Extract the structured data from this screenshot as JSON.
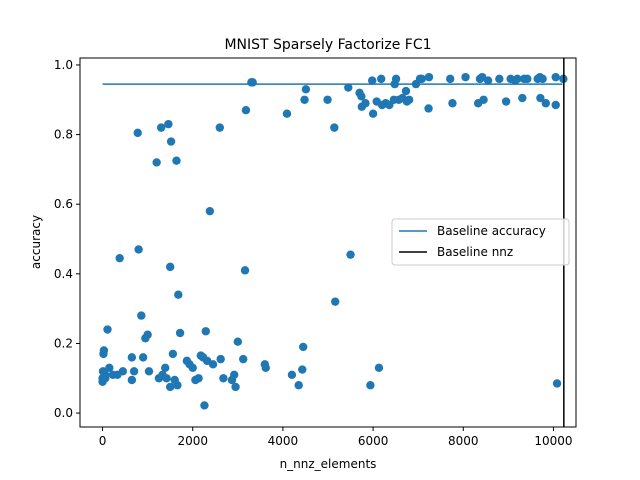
{
  "chart_data": {
    "type": "scatter",
    "title": "MNIST Sparsely Factorize FC1",
    "xlabel": "n_nnz_elements",
    "ylabel": "accuracy",
    "xlim": [
      -500,
      10500
    ],
    "ylim": [
      -0.04,
      1.02
    ],
    "xticks": [
      0,
      2000,
      4000,
      6000,
      8000,
      10000
    ],
    "xtick_labels": [
      "0",
      "2000",
      "4000",
      "6000",
      "8000",
      "10000"
    ],
    "yticks": [
      0.0,
      0.2,
      0.4,
      0.6,
      0.8,
      1.0
    ],
    "ytick_labels": [
      "0.0",
      "0.2",
      "0.4",
      "0.6",
      "0.8",
      "1.0"
    ],
    "grid": false,
    "legend": {
      "position": "center-right",
      "entries": [
        "Baseline accuracy",
        "Baseline nnz"
      ]
    },
    "colors": {
      "points": "#1f77b4",
      "baseline_accuracy": "#1f77b4",
      "baseline_nnz": "#000000"
    },
    "baseline_accuracy": {
      "name": "Baseline accuracy",
      "x": [
        0,
        10200
      ],
      "y": [
        0.945,
        0.945
      ]
    },
    "baseline_nnz": {
      "name": "Baseline nnz",
      "x": 10230
    },
    "points": [
      [
        30,
        0.18
      ],
      [
        20,
        0.17
      ],
      [
        60,
        0.11
      ],
      [
        0,
        0.1
      ],
      [
        0,
        0.09
      ],
      [
        10,
        0.12
      ],
      [
        60,
        0.1
      ],
      [
        110,
        0.24
      ],
      [
        150,
        0.13
      ],
      [
        230,
        0.11
      ],
      [
        330,
        0.11
      ],
      [
        380,
        0.445
      ],
      [
        450,
        0.12
      ],
      [
        650,
        0.16
      ],
      [
        650,
        0.095
      ],
      [
        700,
        0.12
      ],
      [
        780,
        0.805
      ],
      [
        800,
        0.47
      ],
      [
        860,
        0.28
      ],
      [
        900,
        0.16
      ],
      [
        950,
        0.215
      ],
      [
        1000,
        0.225
      ],
      [
        1030,
        0.12
      ],
      [
        1200,
        0.72
      ],
      [
        1250,
        0.1
      ],
      [
        1300,
        0.82
      ],
      [
        1330,
        0.11
      ],
      [
        1390,
        0.13
      ],
      [
        1420,
        0.1
      ],
      [
        1460,
        0.83
      ],
      [
        1500,
        0.075
      ],
      [
        1500,
        0.42
      ],
      [
        1520,
        0.78
      ],
      [
        1560,
        0.17
      ],
      [
        1600,
        0.095
      ],
      [
        1640,
        0.725
      ],
      [
        1660,
        0.08
      ],
      [
        1680,
        0.34
      ],
      [
        1720,
        0.23
      ],
      [
        1870,
        0.15
      ],
      [
        1930,
        0.14
      ],
      [
        2000,
        0.13
      ],
      [
        2060,
        0.095
      ],
      [
        2130,
        0.1
      ],
      [
        2180,
        0.165
      ],
      [
        2230,
        0.16
      ],
      [
        2260,
        0.022
      ],
      [
        2290,
        0.235
      ],
      [
        2320,
        0.15
      ],
      [
        2380,
        0.58
      ],
      [
        2450,
        0.14
      ],
      [
        2600,
        0.82
      ],
      [
        2620,
        0.155
      ],
      [
        2680,
        0.1
      ],
      [
        2870,
        0.095
      ],
      [
        2920,
        0.11
      ],
      [
        2950,
        0.075
      ],
      [
        3000,
        0.205
      ],
      [
        3120,
        0.155
      ],
      [
        3160,
        0.41
      ],
      [
        3180,
        0.87
      ],
      [
        3300,
        0.95
      ],
      [
        3330,
        0.95
      ],
      [
        3600,
        0.14
      ],
      [
        3620,
        0.13
      ],
      [
        4090,
        0.86
      ],
      [
        4200,
        0.11
      ],
      [
        4350,
        0.08
      ],
      [
        4430,
        0.125
      ],
      [
        4450,
        0.19
      ],
      [
        4480,
        0.9
      ],
      [
        4510,
        0.93
      ],
      [
        4990,
        0.9
      ],
      [
        5140,
        0.82
      ],
      [
        5160,
        0.32
      ],
      [
        5450,
        0.935
      ],
      [
        5500,
        0.455
      ],
      [
        5700,
        0.92
      ],
      [
        5740,
        0.91
      ],
      [
        5750,
        0.88
      ],
      [
        5830,
        0.89
      ],
      [
        5940,
        0.08
      ],
      [
        5980,
        0.955
      ],
      [
        6000,
        0.86
      ],
      [
        6080,
        0.895
      ],
      [
        6130,
        0.13
      ],
      [
        6180,
        0.96
      ],
      [
        6200,
        0.885
      ],
      [
        6280,
        0.89
      ],
      [
        6360,
        0.885
      ],
      [
        6460,
        0.9
      ],
      [
        6480,
        0.945
      ],
      [
        6510,
        0.96
      ],
      [
        6570,
        0.9
      ],
      [
        6650,
        0.905
      ],
      [
        6730,
        0.925
      ],
      [
        6750,
        0.895
      ],
      [
        6800,
        0.9
      ],
      [
        6950,
        0.945
      ],
      [
        7040,
        0.96
      ],
      [
        7080,
        0.96
      ],
      [
        7230,
        0.875
      ],
      [
        7240,
        0.965
      ],
      [
        7710,
        0.96
      ],
      [
        7760,
        0.89
      ],
      [
        8050,
        0.965
      ],
      [
        8330,
        0.89
      ],
      [
        8370,
        0.96
      ],
      [
        8420,
        0.965
      ],
      [
        8450,
        0.9
      ],
      [
        8550,
        0.955
      ],
      [
        8800,
        0.96
      ],
      [
        8950,
        0.895
      ],
      [
        9050,
        0.96
      ],
      [
        9150,
        0.955
      ],
      [
        9200,
        0.96
      ],
      [
        9310,
        0.905
      ],
      [
        9350,
        0.96
      ],
      [
        9420,
        0.96
      ],
      [
        9650,
        0.96
      ],
      [
        9700,
        0.965
      ],
      [
        9710,
        0.905
      ],
      [
        9760,
        0.96
      ],
      [
        9830,
        0.89
      ],
      [
        10050,
        0.965
      ],
      [
        10050,
        0.885
      ],
      [
        10080,
        0.085
      ],
      [
        10220,
        0.96
      ]
    ]
  }
}
